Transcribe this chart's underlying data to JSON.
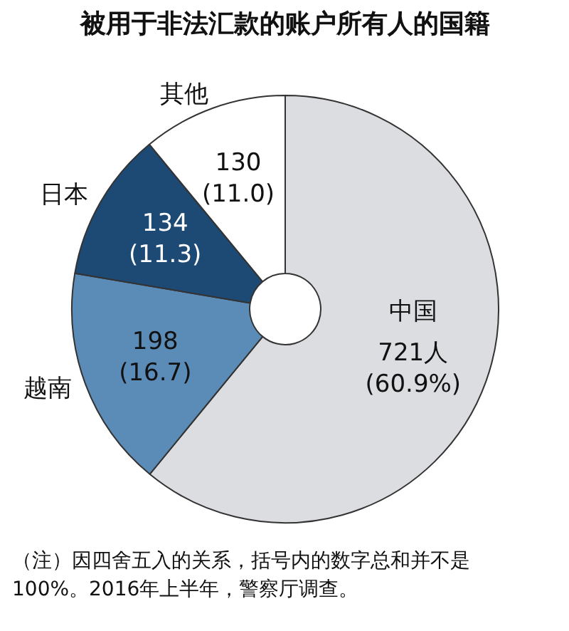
{
  "chart_data": {
    "type": "donut",
    "title": "被用于非法汇款的账户所有人的国籍",
    "categories": [
      "中国",
      "越南",
      "日本",
      "其他"
    ],
    "values": [
      721,
      198,
      134,
      130
    ],
    "value_labels": [
      "721人\n(60.9%)",
      "198\n(16.7)",
      "134\n(11.3)",
      "130\n(11.0)"
    ],
    "colors": [
      "#dcdde1",
      "#5b8cb8",
      "#1d4a74",
      "#ffffff"
    ],
    "annotations": [
      "（注）因四舍五入的关系，括号内的数字总和并不是100%。2016年上半年，警察厅调查。"
    ]
  }
}
